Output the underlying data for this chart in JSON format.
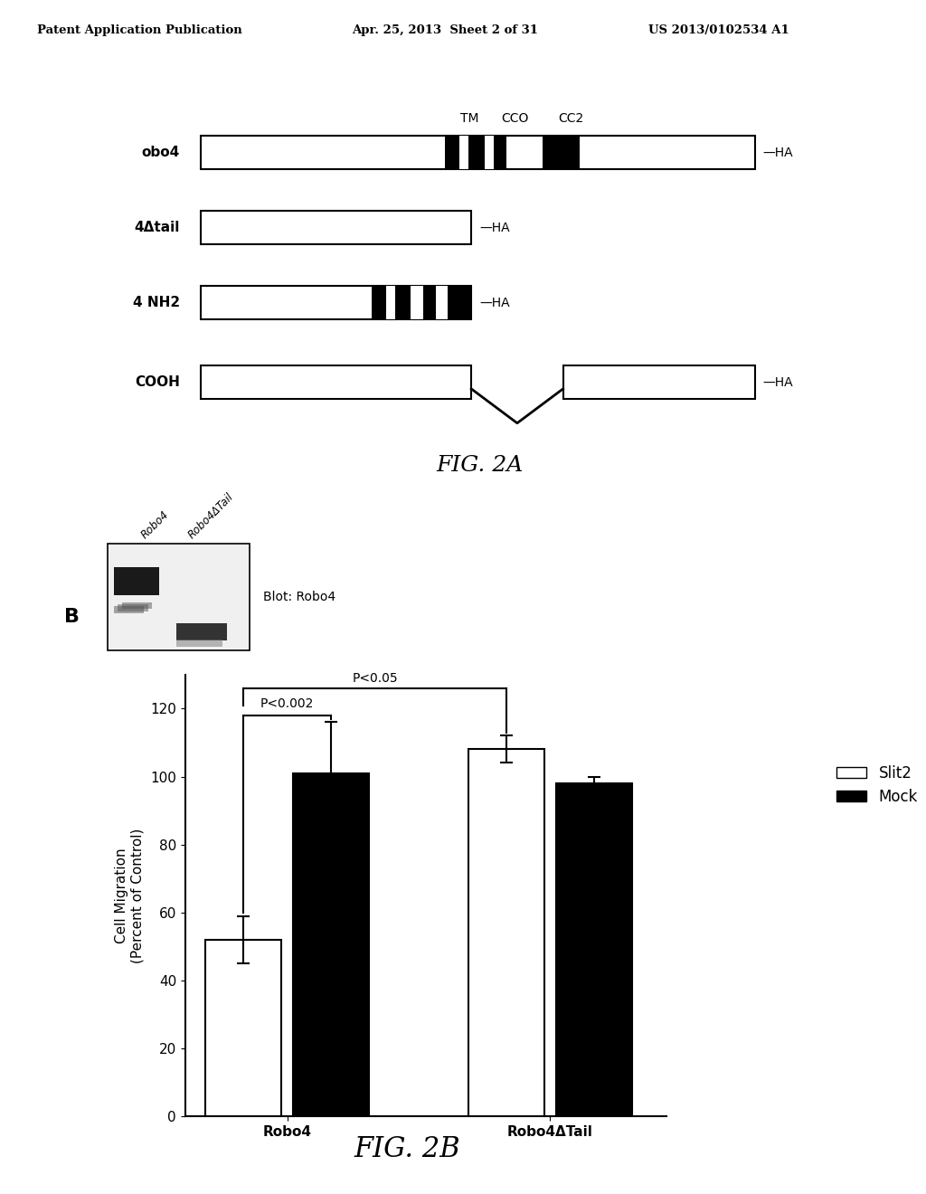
{
  "header_left": "Patent Application Publication",
  "header_mid": "Apr. 25, 2013  Sheet 2 of 31",
  "header_right": "US 2013/0102534 A1",
  "fig2a_label": "FIG. 2A",
  "fig2b_label": "FIG. 2B",
  "diagram_labels": [
    "obo4",
    "4Δtail",
    "4 NH2",
    "COOH"
  ],
  "tm_label": "TM",
  "cc0_label": "CCO",
  "cc2_label": "CC2",
  "ha_label": "HA",
  "panel_b_label": "B",
  "blot_label": "Blot: Robo4",
  "bar_values": [
    52,
    101,
    108,
    98
  ],
  "bar_errors": [
    7,
    15,
    4,
    2
  ],
  "bar_colors": [
    "white",
    "black",
    "white",
    "black"
  ],
  "bar_edgecolors": [
    "black",
    "black",
    "black",
    "black"
  ],
  "ylabel": "Cell Migration\n(Percent of Control)",
  "ylim": [
    0,
    130
  ],
  "yticks": [
    0,
    20,
    40,
    60,
    80,
    100,
    120
  ],
  "legend_labels": [
    "Slit2",
    "Mock"
  ],
  "legend_colors": [
    "white",
    "black"
  ],
  "p_value_inner": "P<0.002",
  "p_value_outer": "P<0.05",
  "x_labels": [
    "Robo4",
    "Robo4ΔTail"
  ],
  "background_color": "white"
}
